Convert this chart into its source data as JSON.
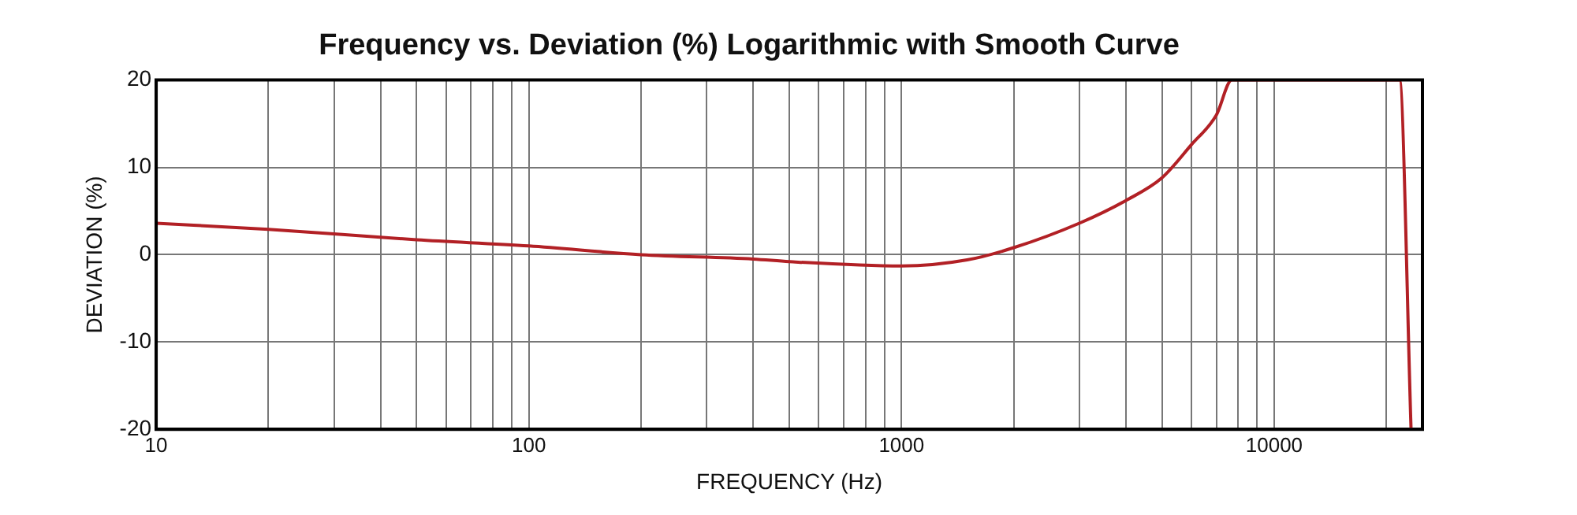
{
  "chart_data": {
    "type": "line",
    "title": "Frequency vs. Deviation (%) Logarithmic with Smooth Curve",
    "xlabel": "FREQUENCY (Hz)",
    "ylabel": "DEVIATION (%)",
    "x": [
      10,
      20,
      50,
      100,
      200,
      400,
      500,
      1000,
      1500,
      2000,
      3000,
      4000,
      5000,
      6000,
      7000,
      7700,
      21700,
      23300
    ],
    "series": [
      {
        "color": "#b22025",
        "values": [
          3.6,
          2.9,
          1.7,
          1.0,
          0,
          -0.5,
          -0.8,
          -1.3,
          -0.6,
          0.8,
          3.6,
          6.2,
          8.8,
          12.6,
          16,
          20,
          20,
          -20
        ]
      }
    ],
    "log": "x",
    "xlim": [
      10,
      25000
    ],
    "xticks": [
      10,
      {
        "value": 20,
        "label": null
      },
      {
        "value": 30,
        "label": null
      },
      {
        "value": 40,
        "label": null
      },
      {
        "value": 50,
        "label": null
      },
      {
        "value": 60,
        "label": null
      },
      {
        "value": 70,
        "label": null
      },
      {
        "value": 80,
        "label": null
      },
      {
        "value": 90,
        "label": null
      },
      100,
      {
        "value": 200,
        "label": null
      },
      {
        "value": 300,
        "label": null
      },
      {
        "value": 400,
        "label": null
      },
      {
        "value": 500,
        "label": null
      },
      {
        "value": 600,
        "label": null
      },
      {
        "value": 700,
        "label": null
      },
      {
        "value": 800,
        "label": null
      },
      {
        "value": 900,
        "label": null
      },
      1000,
      {
        "value": 2000,
        "label": null
      },
      {
        "value": 3000,
        "label": null
      },
      {
        "value": 4000,
        "label": null
      },
      {
        "value": 5000,
        "label": null
      },
      {
        "value": 6000,
        "label": null
      },
      {
        "value": 7000,
        "label": null
      },
      {
        "value": 8000,
        "label": null
      },
      {
        "value": 9000,
        "label": null
      },
      10000,
      {
        "value": 20000,
        "label": null
      }
    ],
    "ylim": [
      -20,
      20
    ],
    "yticks": [
      -20,
      -10,
      0,
      10,
      20
    ],
    "grid": true,
    "legend": false,
    "marker": "none",
    "line_style": "solid"
  }
}
